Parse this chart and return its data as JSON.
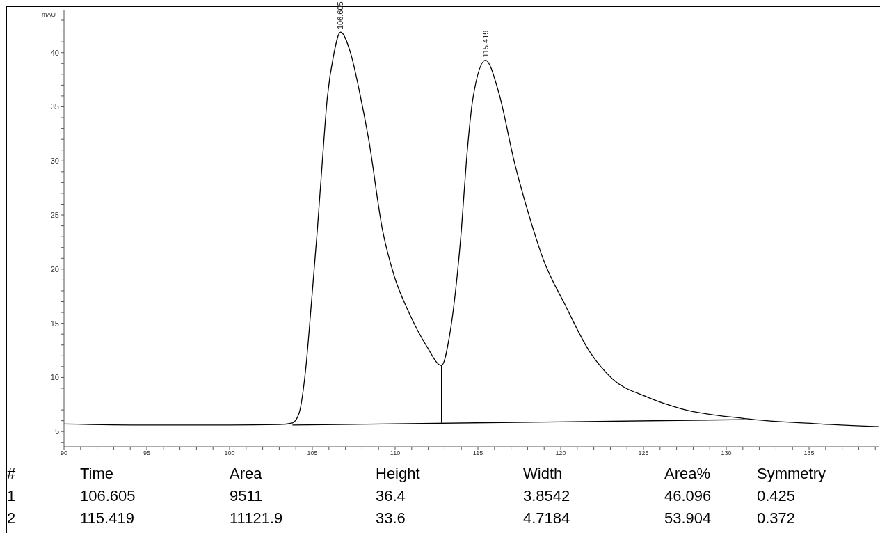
{
  "chart_data": {
    "type": "line",
    "ylabel": "mAU",
    "marker": "none",
    "line_style": "solid",
    "grid": false,
    "xlim": [
      90,
      139.2
    ],
    "ylim": [
      3.6,
      43.9
    ],
    "xticks": [
      90,
      {
        "value": 91,
        "label": null
      },
      {
        "value": 92,
        "label": null
      },
      {
        "value": 93,
        "label": null
      },
      {
        "value": 94,
        "label": null
      },
      95,
      {
        "value": 96,
        "label": null
      },
      {
        "value": 97,
        "label": null
      },
      {
        "value": 98,
        "label": null
      },
      {
        "value": 99,
        "label": null
      },
      100,
      {
        "value": 101,
        "label": null
      },
      {
        "value": 102,
        "label": null
      },
      {
        "value": 103,
        "label": null
      },
      {
        "value": 104,
        "label": null
      },
      105,
      {
        "value": 106,
        "label": null
      },
      {
        "value": 107,
        "label": null
      },
      {
        "value": 108,
        "label": null
      },
      {
        "value": 109,
        "label": null
      },
      110,
      {
        "value": 111,
        "label": null
      },
      {
        "value": 112,
        "label": null
      },
      {
        "value": 113,
        "label": null
      },
      {
        "value": 114,
        "label": null
      },
      115,
      {
        "value": 116,
        "label": null
      },
      {
        "value": 117,
        "label": null
      },
      {
        "value": 118,
        "label": null
      },
      {
        "value": 119,
        "label": null
      },
      120,
      {
        "value": 121,
        "label": null
      },
      {
        "value": 122,
        "label": null
      },
      {
        "value": 123,
        "label": null
      },
      {
        "value": 124,
        "label": null
      },
      125,
      {
        "value": 126,
        "label": null
      },
      {
        "value": 127,
        "label": null
      },
      {
        "value": 128,
        "label": null
      },
      {
        "value": 129,
        "label": null
      },
      130,
      {
        "value": 131,
        "label": null
      },
      {
        "value": 132,
        "label": null
      },
      {
        "value": 133,
        "label": null
      },
      {
        "value": 134,
        "label": null
      },
      135,
      {
        "value": 136,
        "label": null
      },
      {
        "value": 137,
        "label": null
      },
      {
        "value": 138,
        "label": null
      },
      {
        "value": 139,
        "label": null
      }
    ],
    "yticks": [
      {
        "value": 4,
        "label": null
      },
      5,
      {
        "value": 6,
        "label": null
      },
      {
        "value": 7,
        "label": null
      },
      {
        "value": 8,
        "label": null
      },
      {
        "value": 9,
        "label": null
      },
      10,
      {
        "value": 11,
        "label": null
      },
      {
        "value": 12,
        "label": null
      },
      {
        "value": 13,
        "label": null
      },
      {
        "value": 14,
        "label": null
      },
      15,
      {
        "value": 16,
        "label": null
      },
      {
        "value": 17,
        "label": null
      },
      {
        "value": 18,
        "label": null
      },
      {
        "value": 19,
        "label": null
      },
      20,
      {
        "value": 21,
        "label": null
      },
      {
        "value": 22,
        "label": null
      },
      {
        "value": 23,
        "label": null
      },
      {
        "value": 24,
        "label": null
      },
      25,
      {
        "value": 26,
        "label": null
      },
      {
        "value": 27,
        "label": null
      },
      {
        "value": 28,
        "label": null
      },
      {
        "value": 29,
        "label": null
      },
      30,
      {
        "value": 31,
        "label": null
      },
      {
        "value": 32,
        "label": null
      },
      {
        "value": 33,
        "label": null
      },
      {
        "value": 34,
        "label": null
      },
      35,
      {
        "value": 36,
        "label": null
      },
      {
        "value": 37,
        "label": null
      },
      {
        "value": 38,
        "label": null
      },
      {
        "value": 39,
        "label": null
      },
      40,
      {
        "value": 41,
        "label": null
      },
      {
        "value": 42,
        "label": null
      },
      {
        "value": 43,
        "label": null
      }
    ],
    "series": [
      {
        "color": "#000000",
        "x": [
          90,
          95,
          100,
          103,
          103.8,
          104.2,
          104.6,
          104.96,
          105.3,
          105.6,
          105.9,
          106.3,
          106.7,
          107.3,
          107.86,
          108.4,
          109.24,
          109.96,
          110.8,
          111.9,
          112.8,
          113.3,
          113.74,
          114,
          114.3,
          114.7,
          115.46,
          116.26,
          117.2,
          118.36,
          118.9,
          120.3,
          121.7,
          123.1,
          125.2,
          127.3,
          131.1,
          135.7,
          139.2
        ],
        "values": [
          5.7,
          5.6,
          5.6,
          5.65,
          5.8,
          6.7,
          10.8,
          17.2,
          23.6,
          29.9,
          35.8,
          39.9,
          41.9,
          40,
          36.3,
          32,
          23.6,
          19.3,
          16.1,
          12.9,
          11.1,
          14,
          19.3,
          23.6,
          29.9,
          35.8,
          39.3,
          36.3,
          29.9,
          23.6,
          21.1,
          16.6,
          12.5,
          9.9,
          8.2,
          7.1,
          6.2,
          5.7,
          5.45
        ]
      },
      {
        "color": "#000000",
        "x": [
          103.8,
          131.1
        ],
        "values": [
          5.6,
          6.1
        ]
      },
      {
        "color": "#000000",
        "x": [
          112.8,
          112.8
        ],
        "values": [
          5.8,
          11.1
        ]
      }
    ],
    "annotations": [
      {
        "text": "106.605",
        "x": 106.7,
        "y": 41.9
      },
      {
        "text": "115.419",
        "x": 115.46,
        "y": 39.3
      },
      "#",
      "Time",
      "Area",
      "Height",
      "Width",
      "Area%",
      "Symmetry",
      "1",
      "106.605",
      "9511",
      "36.4",
      "3.8542",
      "46.096",
      "0.425",
      "2",
      "115.419",
      "11121.9",
      "33.6",
      "4.7184",
      "53.904",
      "0.372"
    ]
  }
}
